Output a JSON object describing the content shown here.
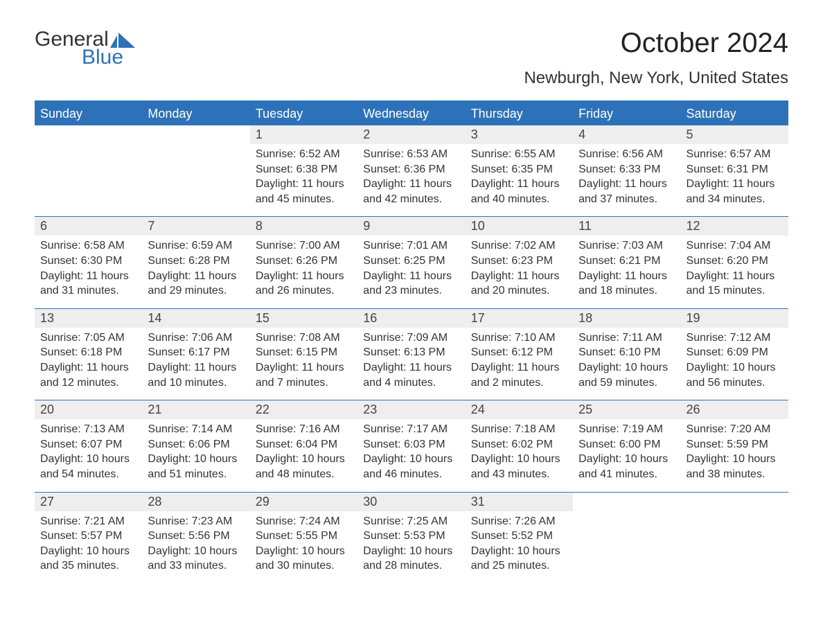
{
  "logo": {
    "text1": "General",
    "text2": "Blue",
    "icon_color": "#2d72b8"
  },
  "title": "October 2024",
  "location": "Newburgh, New York, United States",
  "colors": {
    "header_bg": "#2d72b8",
    "header_text": "#ffffff",
    "daynum_bg": "#eeeeee",
    "border": "#2d72b8",
    "body_text": "#333333",
    "background": "#ffffff"
  },
  "weekdays": [
    "Sunday",
    "Monday",
    "Tuesday",
    "Wednesday",
    "Thursday",
    "Friday",
    "Saturday"
  ],
  "weeks": [
    [
      {
        "num": "",
        "sunrise": "",
        "sunset": "",
        "daylight": ""
      },
      {
        "num": "",
        "sunrise": "",
        "sunset": "",
        "daylight": ""
      },
      {
        "num": "1",
        "sunrise": "Sunrise: 6:52 AM",
        "sunset": "Sunset: 6:38 PM",
        "daylight": "Daylight: 11 hours and 45 minutes."
      },
      {
        "num": "2",
        "sunrise": "Sunrise: 6:53 AM",
        "sunset": "Sunset: 6:36 PM",
        "daylight": "Daylight: 11 hours and 42 minutes."
      },
      {
        "num": "3",
        "sunrise": "Sunrise: 6:55 AM",
        "sunset": "Sunset: 6:35 PM",
        "daylight": "Daylight: 11 hours and 40 minutes."
      },
      {
        "num": "4",
        "sunrise": "Sunrise: 6:56 AM",
        "sunset": "Sunset: 6:33 PM",
        "daylight": "Daylight: 11 hours and 37 minutes."
      },
      {
        "num": "5",
        "sunrise": "Sunrise: 6:57 AM",
        "sunset": "Sunset: 6:31 PM",
        "daylight": "Daylight: 11 hours and 34 minutes."
      }
    ],
    [
      {
        "num": "6",
        "sunrise": "Sunrise: 6:58 AM",
        "sunset": "Sunset: 6:30 PM",
        "daylight": "Daylight: 11 hours and 31 minutes."
      },
      {
        "num": "7",
        "sunrise": "Sunrise: 6:59 AM",
        "sunset": "Sunset: 6:28 PM",
        "daylight": "Daylight: 11 hours and 29 minutes."
      },
      {
        "num": "8",
        "sunrise": "Sunrise: 7:00 AM",
        "sunset": "Sunset: 6:26 PM",
        "daylight": "Daylight: 11 hours and 26 minutes."
      },
      {
        "num": "9",
        "sunrise": "Sunrise: 7:01 AM",
        "sunset": "Sunset: 6:25 PM",
        "daylight": "Daylight: 11 hours and 23 minutes."
      },
      {
        "num": "10",
        "sunrise": "Sunrise: 7:02 AM",
        "sunset": "Sunset: 6:23 PM",
        "daylight": "Daylight: 11 hours and 20 minutes."
      },
      {
        "num": "11",
        "sunrise": "Sunrise: 7:03 AM",
        "sunset": "Sunset: 6:21 PM",
        "daylight": "Daylight: 11 hours and 18 minutes."
      },
      {
        "num": "12",
        "sunrise": "Sunrise: 7:04 AM",
        "sunset": "Sunset: 6:20 PM",
        "daylight": "Daylight: 11 hours and 15 minutes."
      }
    ],
    [
      {
        "num": "13",
        "sunrise": "Sunrise: 7:05 AM",
        "sunset": "Sunset: 6:18 PM",
        "daylight": "Daylight: 11 hours and 12 minutes."
      },
      {
        "num": "14",
        "sunrise": "Sunrise: 7:06 AM",
        "sunset": "Sunset: 6:17 PM",
        "daylight": "Daylight: 11 hours and 10 minutes."
      },
      {
        "num": "15",
        "sunrise": "Sunrise: 7:08 AM",
        "sunset": "Sunset: 6:15 PM",
        "daylight": "Daylight: 11 hours and 7 minutes."
      },
      {
        "num": "16",
        "sunrise": "Sunrise: 7:09 AM",
        "sunset": "Sunset: 6:13 PM",
        "daylight": "Daylight: 11 hours and 4 minutes."
      },
      {
        "num": "17",
        "sunrise": "Sunrise: 7:10 AM",
        "sunset": "Sunset: 6:12 PM",
        "daylight": "Daylight: 11 hours and 2 minutes."
      },
      {
        "num": "18",
        "sunrise": "Sunrise: 7:11 AM",
        "sunset": "Sunset: 6:10 PM",
        "daylight": "Daylight: 10 hours and 59 minutes."
      },
      {
        "num": "19",
        "sunrise": "Sunrise: 7:12 AM",
        "sunset": "Sunset: 6:09 PM",
        "daylight": "Daylight: 10 hours and 56 minutes."
      }
    ],
    [
      {
        "num": "20",
        "sunrise": "Sunrise: 7:13 AM",
        "sunset": "Sunset: 6:07 PM",
        "daylight": "Daylight: 10 hours and 54 minutes."
      },
      {
        "num": "21",
        "sunrise": "Sunrise: 7:14 AM",
        "sunset": "Sunset: 6:06 PM",
        "daylight": "Daylight: 10 hours and 51 minutes."
      },
      {
        "num": "22",
        "sunrise": "Sunrise: 7:16 AM",
        "sunset": "Sunset: 6:04 PM",
        "daylight": "Daylight: 10 hours and 48 minutes."
      },
      {
        "num": "23",
        "sunrise": "Sunrise: 7:17 AM",
        "sunset": "Sunset: 6:03 PM",
        "daylight": "Daylight: 10 hours and 46 minutes."
      },
      {
        "num": "24",
        "sunrise": "Sunrise: 7:18 AM",
        "sunset": "Sunset: 6:02 PM",
        "daylight": "Daylight: 10 hours and 43 minutes."
      },
      {
        "num": "25",
        "sunrise": "Sunrise: 7:19 AM",
        "sunset": "Sunset: 6:00 PM",
        "daylight": "Daylight: 10 hours and 41 minutes."
      },
      {
        "num": "26",
        "sunrise": "Sunrise: 7:20 AM",
        "sunset": "Sunset: 5:59 PM",
        "daylight": "Daylight: 10 hours and 38 minutes."
      }
    ],
    [
      {
        "num": "27",
        "sunrise": "Sunrise: 7:21 AM",
        "sunset": "Sunset: 5:57 PM",
        "daylight": "Daylight: 10 hours and 35 minutes."
      },
      {
        "num": "28",
        "sunrise": "Sunrise: 7:23 AM",
        "sunset": "Sunset: 5:56 PM",
        "daylight": "Daylight: 10 hours and 33 minutes."
      },
      {
        "num": "29",
        "sunrise": "Sunrise: 7:24 AM",
        "sunset": "Sunset: 5:55 PM",
        "daylight": "Daylight: 10 hours and 30 minutes."
      },
      {
        "num": "30",
        "sunrise": "Sunrise: 7:25 AM",
        "sunset": "Sunset: 5:53 PM",
        "daylight": "Daylight: 10 hours and 28 minutes."
      },
      {
        "num": "31",
        "sunrise": "Sunrise: 7:26 AM",
        "sunset": "Sunset: 5:52 PM",
        "daylight": "Daylight: 10 hours and 25 minutes."
      },
      {
        "num": "",
        "sunrise": "",
        "sunset": "",
        "daylight": ""
      },
      {
        "num": "",
        "sunrise": "",
        "sunset": "",
        "daylight": ""
      }
    ]
  ]
}
